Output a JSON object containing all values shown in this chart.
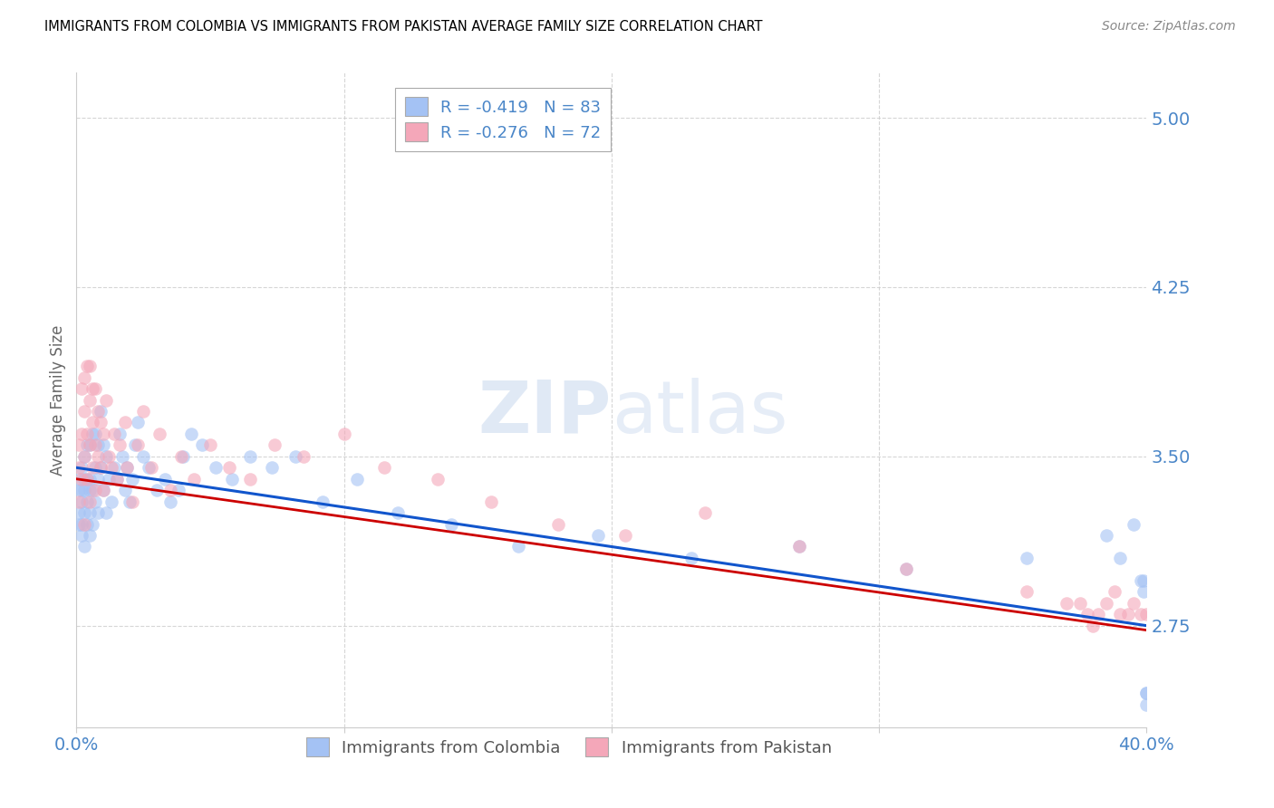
{
  "title": "IMMIGRANTS FROM COLOMBIA VS IMMIGRANTS FROM PAKISTAN AVERAGE FAMILY SIZE CORRELATION CHART",
  "source": "Source: ZipAtlas.com",
  "ylabel": "Average Family Size",
  "yticks": [
    2.75,
    3.5,
    4.25,
    5.0
  ],
  "xlim": [
    0.0,
    0.4
  ],
  "ylim": [
    2.3,
    5.2
  ],
  "colombia_color": "#a4c2f4",
  "pakistan_color": "#f4a7b9",
  "colombia_line_color": "#1155cc",
  "pakistan_line_color": "#cc0000",
  "colombia_R": "-0.419",
  "colombia_N": "83",
  "pakistan_R": "-0.276",
  "pakistan_N": "72",
  "watermark_zip": "ZIP",
  "watermark_atlas": "atlas",
  "colombia_trend_x": [
    0.0,
    0.4
  ],
  "colombia_trend_y": [
    3.45,
    2.75
  ],
  "pakistan_trend_x": [
    0.0,
    0.4
  ],
  "pakistan_trend_y": [
    3.4,
    2.73
  ],
  "background_color": "#ffffff",
  "grid_color": "#cccccc",
  "title_color": "#000000",
  "tick_label_color": "#4a86c8",
  "colombia_x": [
    0.001,
    0.001,
    0.001,
    0.001,
    0.002,
    0.002,
    0.002,
    0.002,
    0.002,
    0.003,
    0.003,
    0.003,
    0.003,
    0.003,
    0.004,
    0.004,
    0.004,
    0.004,
    0.005,
    0.005,
    0.005,
    0.005,
    0.005,
    0.006,
    0.006,
    0.006,
    0.007,
    0.007,
    0.007,
    0.008,
    0.008,
    0.008,
    0.009,
    0.009,
    0.01,
    0.01,
    0.011,
    0.011,
    0.012,
    0.013,
    0.014,
    0.015,
    0.016,
    0.017,
    0.018,
    0.019,
    0.02,
    0.021,
    0.022,
    0.023,
    0.025,
    0.027,
    0.03,
    0.033,
    0.035,
    0.038,
    0.04,
    0.043,
    0.047,
    0.052,
    0.058,
    0.065,
    0.073,
    0.082,
    0.092,
    0.105,
    0.12,
    0.14,
    0.165,
    0.195,
    0.23,
    0.27,
    0.31,
    0.355,
    0.385,
    0.39,
    0.395,
    0.398,
    0.399,
    0.399,
    0.4,
    0.4,
    0.4
  ],
  "colombia_y": [
    3.35,
    3.2,
    3.4,
    3.25,
    3.3,
    3.15,
    3.45,
    3.35,
    3.2,
    3.4,
    3.25,
    3.1,
    3.35,
    3.5,
    3.3,
    3.2,
    3.4,
    3.55,
    3.25,
    3.35,
    3.15,
    3.4,
    3.55,
    3.2,
    3.35,
    3.6,
    3.3,
    3.45,
    3.6,
    3.25,
    3.4,
    3.55,
    3.45,
    3.7,
    3.35,
    3.55,
    3.25,
    3.5,
    3.4,
    3.3,
    3.45,
    3.4,
    3.6,
    3.5,
    3.35,
    3.45,
    3.3,
    3.4,
    3.55,
    3.65,
    3.5,
    3.45,
    3.35,
    3.4,
    3.3,
    3.35,
    3.5,
    3.6,
    3.55,
    3.45,
    3.4,
    3.5,
    3.45,
    3.5,
    3.3,
    3.4,
    3.25,
    3.2,
    3.1,
    3.15,
    3.05,
    3.1,
    3.0,
    3.05,
    3.15,
    3.05,
    3.2,
    2.95,
    2.95,
    2.9,
    2.45,
    2.45,
    2.4
  ],
  "pakistan_x": [
    0.001,
    0.001,
    0.001,
    0.002,
    0.002,
    0.002,
    0.003,
    0.003,
    0.003,
    0.003,
    0.004,
    0.004,
    0.004,
    0.005,
    0.005,
    0.005,
    0.005,
    0.006,
    0.006,
    0.006,
    0.007,
    0.007,
    0.007,
    0.008,
    0.008,
    0.009,
    0.009,
    0.01,
    0.01,
    0.011,
    0.012,
    0.013,
    0.014,
    0.015,
    0.016,
    0.018,
    0.019,
    0.021,
    0.023,
    0.025,
    0.028,
    0.031,
    0.035,
    0.039,
    0.044,
    0.05,
    0.057,
    0.065,
    0.074,
    0.085,
    0.1,
    0.115,
    0.135,
    0.155,
    0.18,
    0.205,
    0.235,
    0.27,
    0.31,
    0.355,
    0.37,
    0.375,
    0.378,
    0.38,
    0.382,
    0.385,
    0.388,
    0.39,
    0.393,
    0.395,
    0.398,
    0.4
  ],
  "pakistan_y": [
    3.45,
    3.3,
    3.55,
    3.6,
    3.8,
    3.4,
    3.2,
    3.5,
    3.7,
    3.85,
    3.4,
    3.6,
    3.9,
    3.3,
    3.55,
    3.75,
    3.9,
    3.45,
    3.65,
    3.8,
    3.35,
    3.55,
    3.8,
    3.5,
    3.7,
    3.45,
    3.65,
    3.35,
    3.6,
    3.75,
    3.5,
    3.45,
    3.6,
    3.4,
    3.55,
    3.65,
    3.45,
    3.3,
    3.55,
    3.7,
    3.45,
    3.6,
    3.35,
    3.5,
    3.4,
    3.55,
    3.45,
    3.4,
    3.55,
    3.5,
    3.6,
    3.45,
    3.4,
    3.3,
    3.2,
    3.15,
    3.25,
    3.1,
    3.0,
    2.9,
    2.85,
    2.85,
    2.8,
    2.75,
    2.8,
    2.85,
    2.9,
    2.8,
    2.8,
    2.85,
    2.8,
    2.8
  ]
}
